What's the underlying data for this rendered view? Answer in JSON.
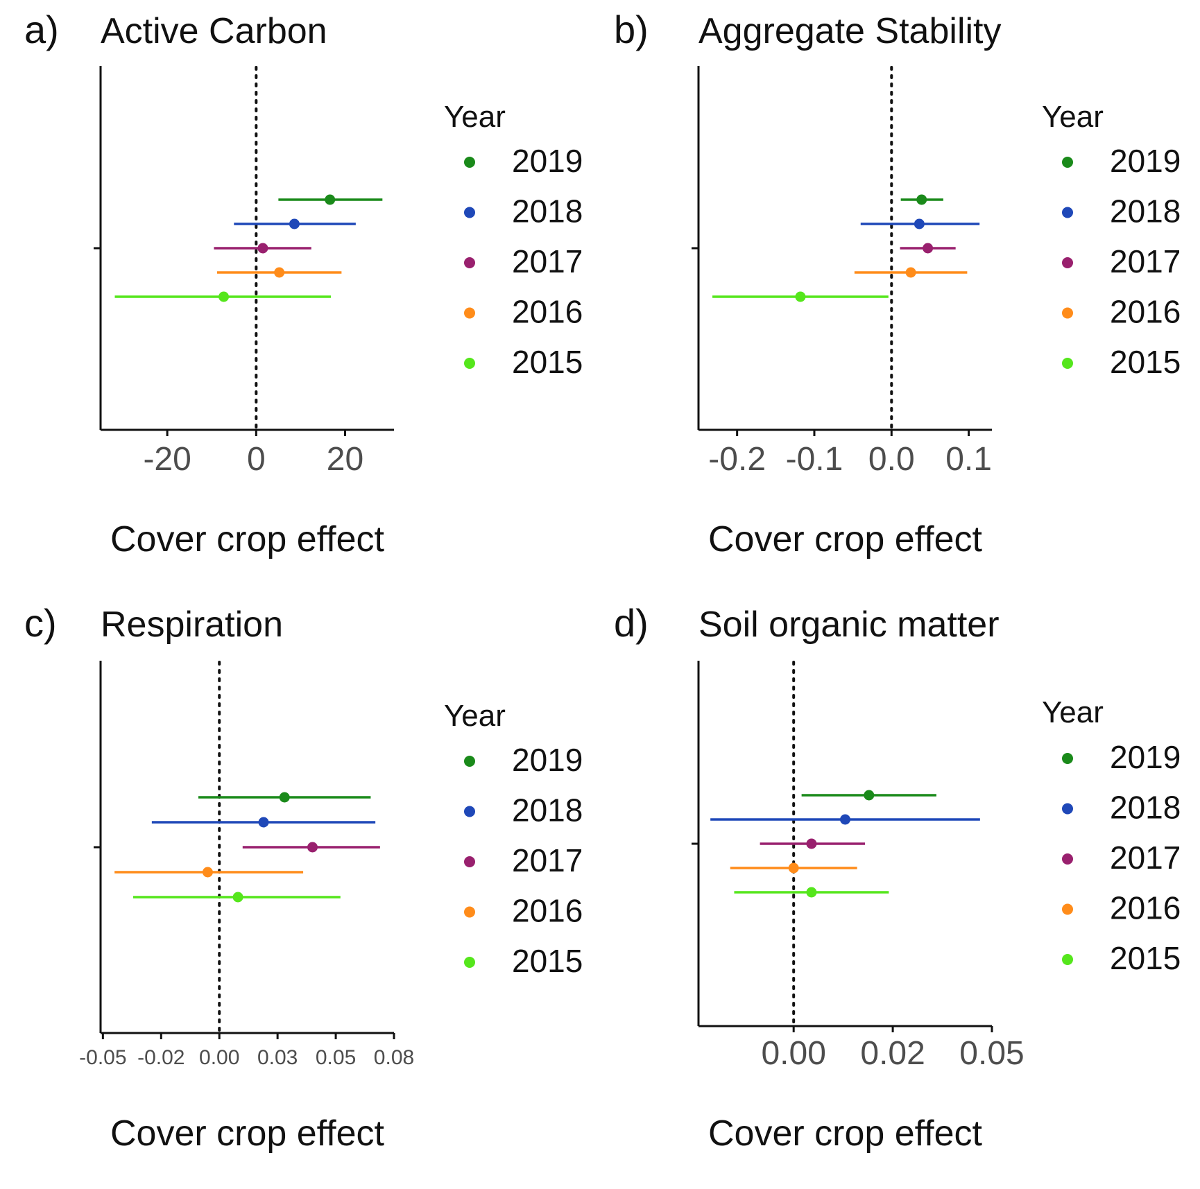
{
  "chart_data": [
    {
      "type": "forest",
      "panel_label": "a)",
      "title": "Active Carbon",
      "xlabel": "Cover crop effect",
      "ylabel": "",
      "xlim": [
        -35,
        31
      ],
      "xticks": [
        -20,
        0,
        20
      ],
      "xtick_labels": [
        "-20",
        "0",
        "20"
      ],
      "reference_line": 0,
      "legend": {
        "title": "Year",
        "entries": [
          "2019",
          "2018",
          "2017",
          "2016",
          "2015"
        ]
      },
      "series": [
        {
          "name": "2019",
          "color": "#1a8a1a",
          "estimate": 16.6,
          "lower": 5.0,
          "upper": 28.4
        },
        {
          "name": "2018",
          "color": "#1f48b8",
          "estimate": 8.6,
          "lower": -5.0,
          "upper": 22.4
        },
        {
          "name": "2017",
          "color": "#99206e",
          "estimate": 1.5,
          "lower": -9.5,
          "upper": 12.4
        },
        {
          "name": "2016",
          "color": "#ff8c1a",
          "estimate": 5.2,
          "lower": -8.8,
          "upper": 19.2
        },
        {
          "name": "2015",
          "color": "#55e61c",
          "estimate": -7.3,
          "lower": -31.8,
          "upper": 16.8
        }
      ]
    },
    {
      "type": "forest",
      "panel_label": "b)",
      "title": "Aggregate Stability",
      "xlabel": "Cover crop effect",
      "ylabel": "",
      "xlim": [
        -0.25,
        0.13
      ],
      "xticks": [
        -0.2,
        -0.1,
        0.0,
        0.1
      ],
      "xtick_labels": [
        "-0.2",
        "-0.1",
        "0.0",
        "0.1"
      ],
      "reference_line": 0,
      "legend": {
        "title": "Year",
        "entries": [
          "2019",
          "2018",
          "2017",
          "2016",
          "2015"
        ]
      },
      "series": [
        {
          "name": "2019",
          "color": "#1a8a1a",
          "estimate": 0.039,
          "lower": 0.012,
          "upper": 0.067
        },
        {
          "name": "2018",
          "color": "#1f48b8",
          "estimate": 0.036,
          "lower": -0.04,
          "upper": 0.114
        },
        {
          "name": "2017",
          "color": "#99206e",
          "estimate": 0.047,
          "lower": 0.011,
          "upper": 0.083
        },
        {
          "name": "2016",
          "color": "#ff8c1a",
          "estimate": 0.025,
          "lower": -0.048,
          "upper": 0.098
        },
        {
          "name": "2015",
          "color": "#55e61c",
          "estimate": -0.118,
          "lower": -0.232,
          "upper": -0.004
        }
      ]
    },
    {
      "type": "forest",
      "panel_label": "c)",
      "title": "Respiration",
      "xlabel": "Cover crop effect",
      "ylabel": "",
      "xlim": [
        -0.051,
        0.075
      ],
      "xticks": [
        -0.05,
        -0.025,
        0.0,
        0.025,
        0.05,
        0.075
      ],
      "xtick_labels": [
        "-0.05",
        "-0.02",
        "0.00",
        "0.03",
        "0.05",
        "0.08"
      ],
      "reference_line": 0,
      "legend": {
        "title": "Year",
        "entries": [
          "2019",
          "2018",
          "2017",
          "2016",
          "2015"
        ]
      },
      "series": [
        {
          "name": "2019",
          "color": "#1a8a1a",
          "estimate": 0.028,
          "lower": -0.009,
          "upper": 0.065
        },
        {
          "name": "2018",
          "color": "#1f48b8",
          "estimate": 0.019,
          "lower": -0.029,
          "upper": 0.067
        },
        {
          "name": "2017",
          "color": "#99206e",
          "estimate": 0.04,
          "lower": 0.01,
          "upper": 0.069
        },
        {
          "name": "2016",
          "color": "#ff8c1a",
          "estimate": -0.005,
          "lower": -0.045,
          "upper": 0.036
        },
        {
          "name": "2015",
          "color": "#55e61c",
          "estimate": 0.008,
          "lower": -0.037,
          "upper": 0.052
        }
      ]
    },
    {
      "type": "forest",
      "panel_label": "d)",
      "title": "Soil organic matter",
      "xlabel": "Cover crop effect",
      "ylabel": "",
      "xlim": [
        -0.024,
        0.05
      ],
      "xticks": [
        0.0,
        0.025,
        0.05
      ],
      "xtick_labels": [
        "0.00",
        "0.02",
        "0.05"
      ],
      "reference_line": 0,
      "legend": {
        "title": "Year",
        "entries": [
          "2019",
          "2018",
          "2017",
          "2016",
          "2015"
        ]
      },
      "series": [
        {
          "name": "2019",
          "color": "#1a8a1a",
          "estimate": 0.019,
          "lower": 0.002,
          "upper": 0.036
        },
        {
          "name": "2018",
          "color": "#1f48b8",
          "estimate": 0.013,
          "lower": -0.021,
          "upper": 0.047
        },
        {
          "name": "2017",
          "color": "#99206e",
          "estimate": 0.0045,
          "lower": -0.0085,
          "upper": 0.018
        },
        {
          "name": "2016",
          "color": "#ff8c1a",
          "estimate": 0.0,
          "lower": -0.016,
          "upper": 0.016
        },
        {
          "name": "2015",
          "color": "#55e61c",
          "estimate": 0.0045,
          "lower": -0.015,
          "upper": 0.024
        }
      ]
    }
  ]
}
